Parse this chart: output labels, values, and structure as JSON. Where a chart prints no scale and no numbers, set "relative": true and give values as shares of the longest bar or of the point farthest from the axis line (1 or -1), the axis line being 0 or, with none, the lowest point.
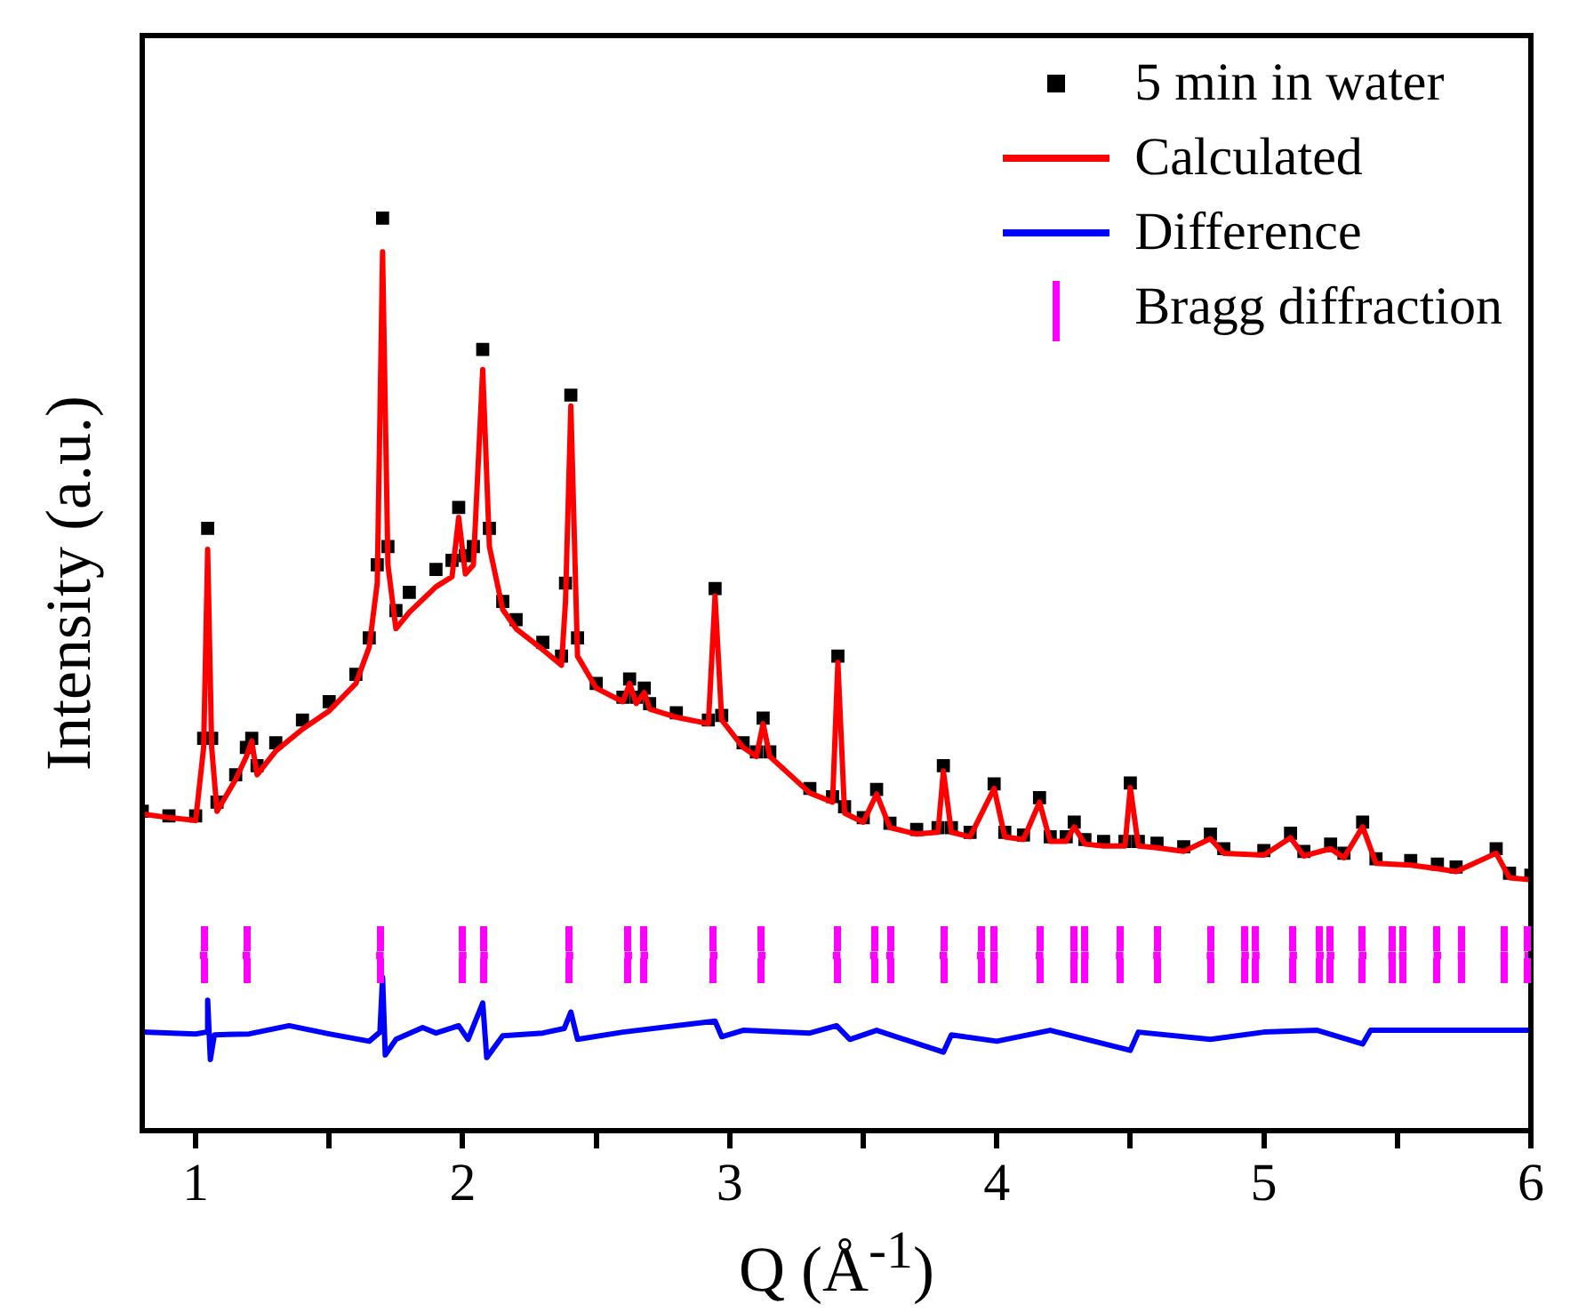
{
  "chart_data": {
    "type": "line",
    "xlabel": "Q (Å$^{-1}$)",
    "ylabel": "Intensity (a.u.)",
    "relative": true,
    "legend": "top right",
    "xlim": [
      0.8,
      6
    ],
    "xticks": [
      1,
      {
        "value": 1.5,
        "label": null
      },
      2,
      {
        "value": 2.5,
        "label": null
      },
      3,
      {
        "value": 3.5,
        "label": null
      },
      4,
      {
        "value": 4.5,
        "label": null
      },
      5,
      {
        "value": 5.5,
        "label": null
      },
      6
    ],
    "series": [
      {
        "name": "5 min in water",
        "type": "scatter",
        "marker": "square",
        "color": "#000000",
        "x": [
          0.8,
          0.9,
          1.0,
          1.03,
          1.045,
          1.06,
          1.08,
          1.15,
          1.19,
          1.21,
          1.23,
          1.3,
          1.4,
          1.5,
          1.6,
          1.65,
          1.68,
          1.7,
          1.72,
          1.75,
          1.8,
          1.9,
          1.96,
          1.985,
          2.01,
          2.04,
          2.075,
          2.1,
          2.15,
          2.2,
          2.3,
          2.37,
          2.385,
          2.405,
          2.43,
          2.5,
          2.6,
          2.625,
          2.65,
          2.68,
          2.7,
          2.8,
          2.92,
          2.945,
          2.97,
          3.05,
          3.1,
          3.125,
          3.15,
          3.3,
          3.385,
          3.405,
          3.43,
          3.5,
          3.55,
          3.6,
          3.7,
          3.78,
          3.8,
          3.83,
          3.9,
          3.99,
          4.03,
          4.1,
          4.16,
          4.2,
          4.26,
          4.29,
          4.33,
          4.4,
          4.48,
          4.5,
          4.53,
          4.6,
          4.7,
          4.8,
          4.85,
          5.0,
          5.1,
          5.15,
          5.25,
          5.3,
          5.37,
          5.42,
          5.55,
          5.65,
          5.72,
          5.87,
          5.92,
          6.0
        ],
        "values": [
          0.35,
          0.345,
          0.345,
          0.43,
          0.66,
          0.43,
          0.36,
          0.39,
          0.42,
          0.43,
          0.4,
          0.425,
          0.45,
          0.47,
          0.5,
          0.54,
          0.62,
          1.0,
          0.64,
          0.57,
          0.59,
          0.615,
          0.625,
          0.683,
          0.63,
          0.64,
          0.856,
          0.66,
          0.58,
          0.56,
          0.535,
          0.52,
          0.6,
          0.806,
          0.54,
          0.49,
          0.475,
          0.495,
          0.475,
          0.485,
          0.468,
          0.458,
          0.45,
          0.594,
          0.455,
          0.425,
          0.415,
          0.452,
          0.415,
          0.375,
          0.366,
          0.52,
          0.355,
          0.343,
          0.374,
          0.337,
          0.33,
          0.332,
          0.4,
          0.332,
          0.327,
          0.38,
          0.327,
          0.324,
          0.365,
          0.322,
          0.322,
          0.338,
          0.319,
          0.317,
          0.317,
          0.381,
          0.317,
          0.315,
          0.311,
          0.325,
          0.309,
          0.307,
          0.326,
          0.306,
          0.314,
          0.304,
          0.338,
          0.298,
          0.296,
          0.292,
          0.289,
          0.309,
          0.282,
          0.28
        ]
      },
      {
        "name": "Calculated",
        "marker": "none",
        "color": "#ff0000",
        "x": [
          0.8,
          0.9,
          1.0,
          1.03,
          1.045,
          1.06,
          1.08,
          1.15,
          1.19,
          1.21,
          1.23,
          1.3,
          1.4,
          1.5,
          1.6,
          1.65,
          1.68,
          1.7,
          1.72,
          1.75,
          1.8,
          1.9,
          1.96,
          1.985,
          2.01,
          2.04,
          2.075,
          2.1,
          2.15,
          2.2,
          2.3,
          2.37,
          2.385,
          2.405,
          2.43,
          2.5,
          2.6,
          2.625,
          2.65,
          2.68,
          2.7,
          2.8,
          2.92,
          2.945,
          2.97,
          3.05,
          3.1,
          3.125,
          3.15,
          3.3,
          3.385,
          3.405,
          3.43,
          3.5,
          3.55,
          3.6,
          3.7,
          3.78,
          3.8,
          3.83,
          3.9,
          3.99,
          4.03,
          4.1,
          4.16,
          4.2,
          4.26,
          4.29,
          4.33,
          4.4,
          4.48,
          4.5,
          4.53,
          4.6,
          4.7,
          4.8,
          4.85,
          5.0,
          5.1,
          5.15,
          5.25,
          5.3,
          5.37,
          5.42,
          5.55,
          5.65,
          5.72,
          5.87,
          5.92,
          6.0
        ],
        "values": [
          0.347,
          0.343,
          0.34,
          0.42,
          0.637,
          0.42,
          0.35,
          0.385,
          0.41,
          0.427,
          0.39,
          0.416,
          0.44,
          0.46,
          0.49,
          0.53,
          0.6,
          0.963,
          0.62,
          0.55,
          0.568,
          0.596,
          0.607,
          0.672,
          0.61,
          0.62,
          0.834,
          0.64,
          0.571,
          0.55,
          0.527,
          0.51,
          0.58,
          0.794,
          0.52,
          0.485,
          0.47,
          0.49,
          0.468,
          0.48,
          0.462,
          0.453,
          0.446,
          0.586,
          0.45,
          0.42,
          0.41,
          0.446,
          0.41,
          0.37,
          0.36,
          0.513,
          0.348,
          0.338,
          0.369,
          0.332,
          0.325,
          0.327,
          0.394,
          0.327,
          0.322,
          0.375,
          0.322,
          0.319,
          0.36,
          0.317,
          0.317,
          0.333,
          0.314,
          0.312,
          0.312,
          0.376,
          0.312,
          0.31,
          0.306,
          0.32,
          0.304,
          0.302,
          0.321,
          0.301,
          0.309,
          0.299,
          0.333,
          0.293,
          0.291,
          0.287,
          0.284,
          0.304,
          0.277,
          0.275
        ]
      },
      {
        "name": "Difference",
        "type": "line",
        "marker": "none",
        "color": "#0000ff",
        "x": [
          0.8,
          1.0,
          1.04,
          1.045,
          1.055,
          1.07,
          1.2,
          1.35,
          1.5,
          1.65,
          1.69,
          1.7,
          1.71,
          1.75,
          1.85,
          1.9,
          1.985,
          2.02,
          2.075,
          2.09,
          2.15,
          2.3,
          2.38,
          2.405,
          2.43,
          2.6,
          2.945,
          2.97,
          3.05,
          3.3,
          3.4,
          3.45,
          3.55,
          3.8,
          3.83,
          4.0,
          4.2,
          4.5,
          4.53,
          4.8,
          5.0,
          5.2,
          5.37,
          5.4,
          6.0
        ],
        "values": [
          0.108,
          0.106,
          0.108,
          0.143,
          0.078,
          0.105,
          0.106,
          0.115,
          0.106,
          0.098,
          0.108,
          0.168,
          0.083,
          0.1,
          0.113,
          0.107,
          0.115,
          0.1,
          0.14,
          0.08,
          0.104,
          0.107,
          0.112,
          0.13,
          0.1,
          0.108,
          0.12,
          0.103,
          0.11,
          0.107,
          0.115,
          0.1,
          0.11,
          0.086,
          0.105,
          0.098,
          0.11,
          0.088,
          0.108,
          0.1,
          0.108,
          0.11,
          0.095,
          0.11,
          0.11
        ]
      },
      {
        "name": "Bragg diffraction",
        "type": "scatter",
        "color": "#ff00ff",
        "x": [
          1.03,
          1.19,
          1.69,
          2.0,
          2.08,
          2.4,
          2.62,
          2.68,
          2.94,
          3.12,
          3.4,
          3.54,
          3.6,
          3.8,
          3.94,
          3.99,
          4.16,
          4.29,
          4.33,
          4.46,
          4.6,
          4.8,
          4.93,
          4.97,
          5.11,
          5.21,
          5.25,
          5.37,
          5.48,
          5.52,
          5.65,
          5.74,
          5.9,
          5.99
        ],
        "values": [
          0.192,
          0.192,
          0.192,
          0.192,
          0.192,
          0.192,
          0.192,
          0.192,
          0.192,
          0.192,
          0.192,
          0.192,
          0.192,
          0.192,
          0.192,
          0.192,
          0.192,
          0.192,
          0.192,
          0.192,
          0.192,
          0.192,
          0.192,
          0.192,
          0.192,
          0.192,
          0.192,
          0.192,
          0.192,
          0.192,
          0.192,
          0.192,
          0.192,
          0.192
        ]
      }
    ]
  }
}
